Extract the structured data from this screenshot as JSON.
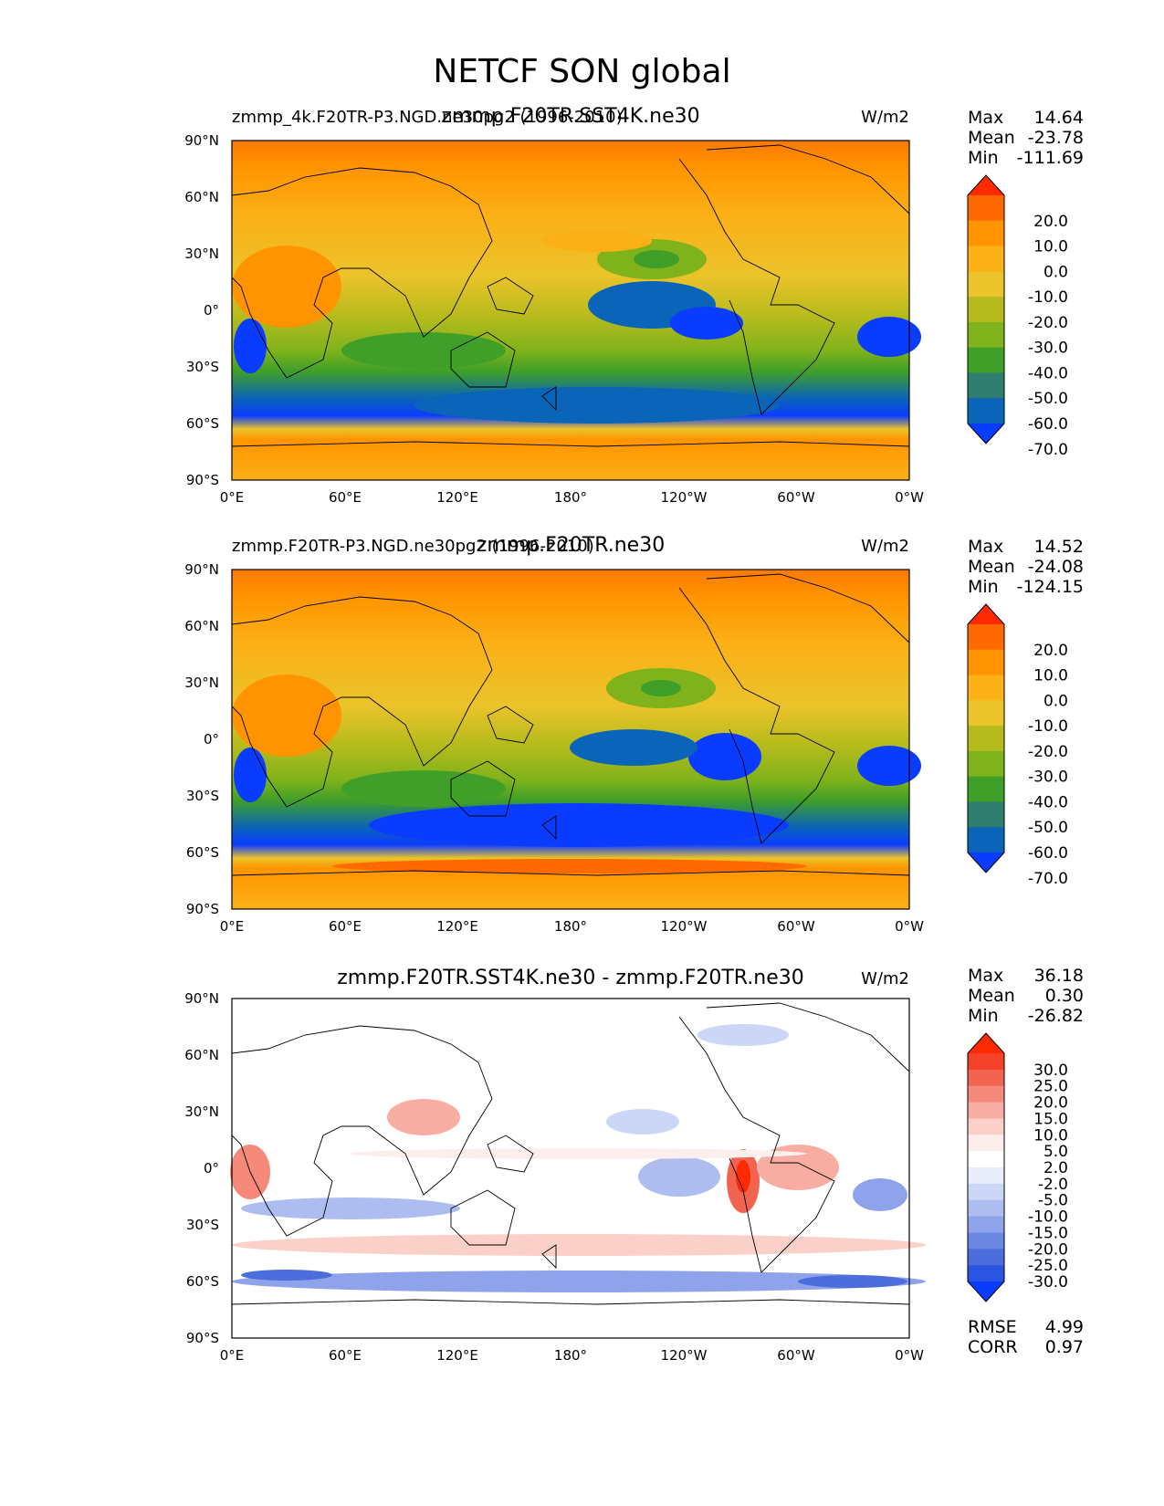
{
  "figure_title": "NETCF SON global",
  "lat_ticks": [
    "90°N",
    "60°N",
    "30°N",
    "0°",
    "30°S",
    "60°S",
    "90°S"
  ],
  "lon_ticks": [
    "0°E",
    "60°E",
    "120°E",
    "180°",
    "120°W",
    "60°W",
    "0°W"
  ],
  "panels": [
    {
      "id": "test",
      "left_label": "zmmp_4k.F20TR-P3.NGD.ne30pg2 (1996-2010)",
      "center_label": "zmmp.F20TR.SST4K.ne30",
      "units": "W/m2",
      "stats": [
        [
          "Max",
          "14.64"
        ],
        [
          "Mean",
          "-23.78"
        ],
        [
          "Min",
          "-111.69"
        ]
      ],
      "colorbar_labels": [
        "20.0",
        "10.0",
        "0.0",
        "-10.0",
        "-20.0",
        "-30.0",
        "-40.0",
        "-50.0",
        "-60.0",
        "-70.0"
      ]
    },
    {
      "id": "reference",
      "left_label": "zmmp.F20TR-P3.NGD.ne30pg2 (1996-2010)",
      "center_label": "zmmp.F20TR.ne30",
      "units": "W/m2",
      "stats": [
        [
          "Max",
          "14.52"
        ],
        [
          "Mean",
          "-24.08"
        ],
        [
          "Min",
          "-124.15"
        ]
      ],
      "colorbar_labels": [
        "20.0",
        "10.0",
        "0.0",
        "-10.0",
        "-20.0",
        "-30.0",
        "-40.0",
        "-50.0",
        "-60.0",
        "-70.0"
      ]
    },
    {
      "id": "difference",
      "left_label": "",
      "center_label": "zmmp.F20TR.SST4K.ne30 - zmmp.F20TR.ne30",
      "units": "W/m2",
      "stats": [
        [
          "Max",
          "36.18"
        ],
        [
          "Mean",
          "0.30"
        ],
        [
          "Min",
          "-26.82"
        ]
      ],
      "colorbar_labels": [
        "30.0",
        "25.0",
        "20.0",
        "15.0",
        "10.0",
        "5.0",
        "2.0",
        "-2.0",
        "-5.0",
        "-10.0",
        "-15.0",
        "-20.0",
        "-25.0",
        "-30.0"
      ],
      "extra_stats": [
        [
          "RMSE",
          "4.99"
        ],
        [
          "CORR",
          "0.97"
        ]
      ]
    }
  ],
  "colors": {
    "abs_scale": [
      "#ff2a00",
      "#ff6a00",
      "#ff9400",
      "#fbb016",
      "#ebc32a",
      "#b5bb1c",
      "#7fb21b",
      "#3f9f28",
      "#2e7d6e",
      "#0a64b8",
      "#0a3cff"
    ],
    "diff_scale": [
      "#ff2a00",
      "#f5402a",
      "#f26450",
      "#f58a7a",
      "#f8ada2",
      "#fbd0c9",
      "#fdeeee",
      "#ffffff",
      "#e8ecfb",
      "#ccd6f6",
      "#aebdf0",
      "#8ea3ea",
      "#6d88e3",
      "#4c6edd",
      "#2b55e0",
      "#0a3cff"
    ]
  }
}
